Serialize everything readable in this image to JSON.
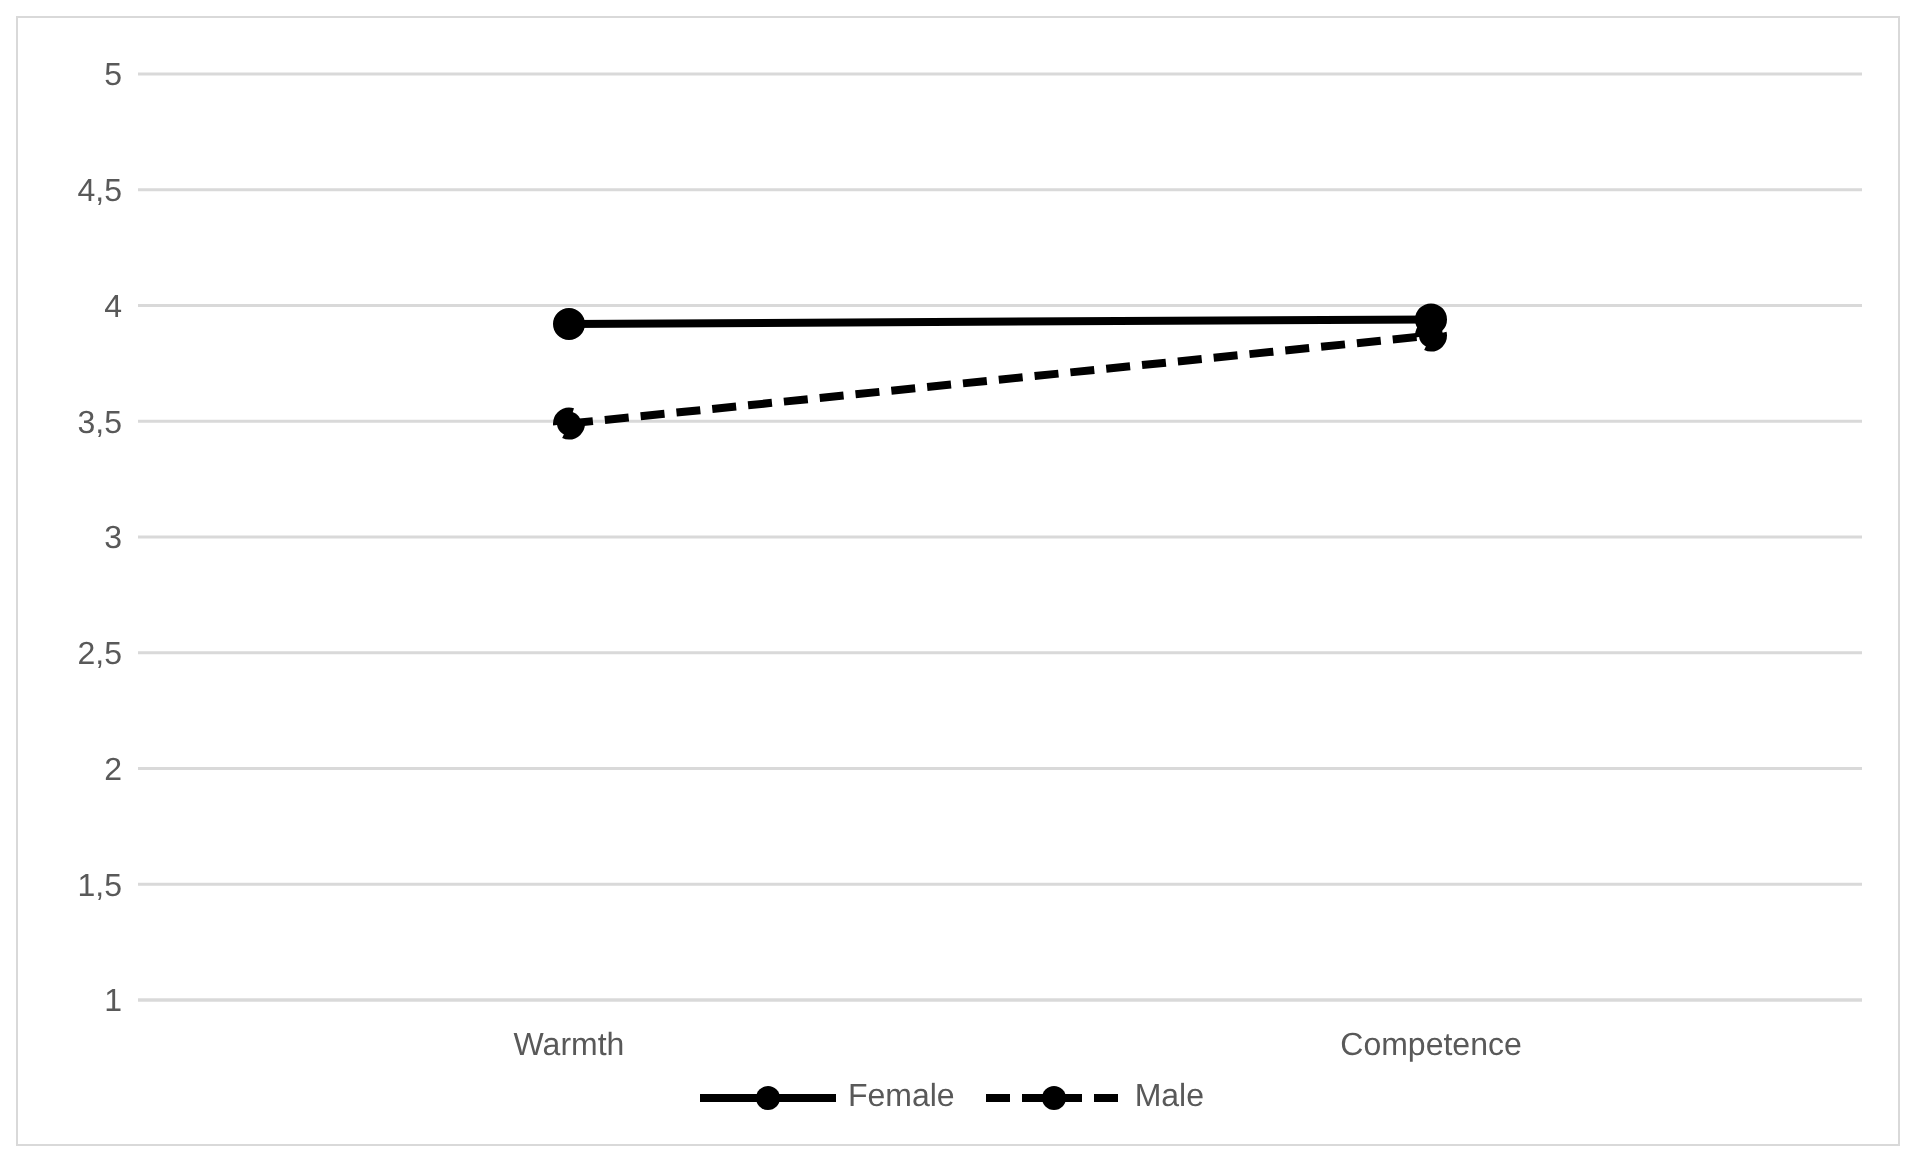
{
  "chart_data": {
    "type": "line",
    "categories": [
      "Warmth",
      "Competence"
    ],
    "series": [
      {
        "name": "Female",
        "color": "#000000",
        "values": [
          3.92,
          3.94
        ],
        "line_style": "solid"
      },
      {
        "name": "Male",
        "color": "#000000",
        "values": [
          3.49,
          3.87
        ],
        "line_style": "dashed"
      }
    ],
    "ylim": [
      1,
      5
    ],
    "yticks": [
      1,
      {
        "value": 1.5,
        "label": "1,5"
      },
      2,
      {
        "value": 2.5,
        "label": "2,5"
      },
      3,
      {
        "value": 3.5,
        "label": "3,5"
      },
      4,
      {
        "value": 4.5,
        "label": "4,5"
      },
      5
    ],
    "grid": "y",
    "legend": "bottom",
    "marker": "circle"
  }
}
